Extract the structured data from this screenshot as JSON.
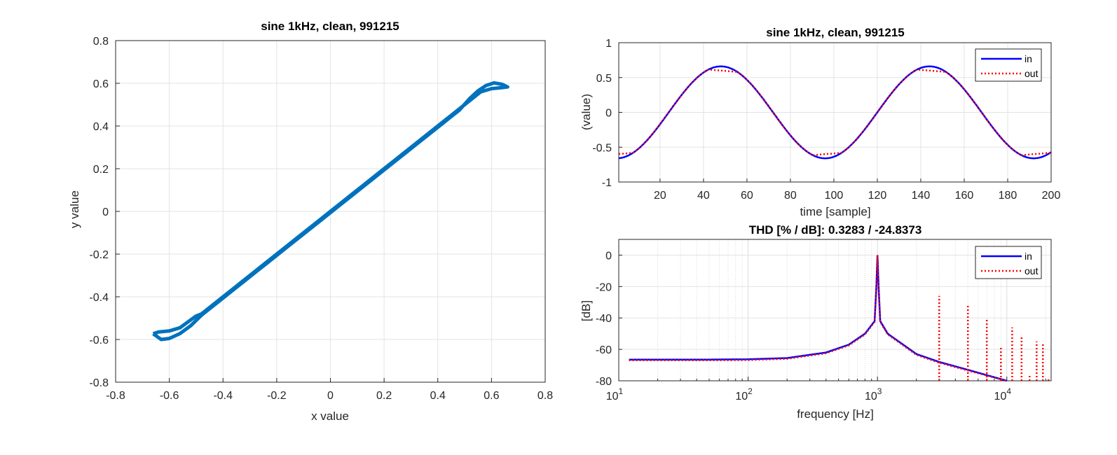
{
  "chart_data": [
    {
      "type": "scatter",
      "title": "sine 1kHz, clean, 991215",
      "xlabel": "x value",
      "ylabel": "y value",
      "xlim": [
        -0.8,
        0.8
      ],
      "ylim": [
        -0.8,
        0.8
      ],
      "xticks": [
        "-0.8",
        "-0.6",
        "-0.4",
        "-0.2",
        "0",
        "0.2",
        "0.4",
        "0.6",
        "0.8"
      ],
      "yticks": [
        "0.8",
        "0.6",
        "0.4",
        "0.2",
        "0",
        "-0.2",
        "-0.4",
        "-0.6",
        "-0.8"
      ],
      "grid": true,
      "color": "#0072BD",
      "description_points": {
        "x": [
          -0.66,
          -0.62,
          -0.55,
          -0.4,
          -0.2,
          0,
          0.2,
          0.4,
          0.55,
          0.62,
          0.66
        ],
        "y": [
          -0.57,
          -0.6,
          -0.55,
          -0.4,
          -0.2,
          0,
          0.2,
          0.4,
          0.55,
          0.6,
          0.58
        ]
      }
    },
    {
      "type": "line",
      "title": "sine 1kHz, clean, 991215",
      "xlabel": "time [sample]",
      "ylabel": "(value)",
      "xlim": [
        1,
        200
      ],
      "ylim": [
        -1,
        1
      ],
      "xticks": [
        "20",
        "40",
        "60",
        "80",
        "100",
        "120",
        "140",
        "160",
        "180",
        "200"
      ],
      "yticks": [
        "1",
        "0.5",
        "0",
        "-0.5",
        "-1"
      ],
      "grid": true,
      "legend_position": "top-right",
      "series": [
        {
          "name": "in",
          "color": "#0000FF",
          "style": "solid",
          "amplitude": 0.66,
          "period_samples": 96,
          "peak_sample": 48
        },
        {
          "name": "out",
          "color": "#FF0000",
          "style": "dotted",
          "amplitude": 0.66,
          "clip_level": 0.58,
          "period_samples": 96,
          "peak_sample": 48
        }
      ]
    },
    {
      "type": "line",
      "title": "THD [% / dB]:  0.3283 / -24.8373",
      "xlabel": "frequency [Hz]",
      "ylabel": "[dB]",
      "xscale": "log",
      "xlim": [
        10,
        22000
      ],
      "ylim": [
        -80,
        10
      ],
      "xticks": [
        "10",
        "10",
        "10",
        "10"
      ],
      "xtick_exponents": [
        "1",
        "2",
        "3",
        "4"
      ],
      "yticks": [
        "0",
        "-20",
        "-40",
        "-60",
        "-80"
      ],
      "grid": true,
      "legend_position": "top-right",
      "series": [
        {
          "name": "in",
          "color": "#0000FF",
          "style": "solid",
          "points": [
            [
              12,
              -66.5
            ],
            [
              50,
              -66.5
            ],
            [
              100,
              -66.3
            ],
            [
              200,
              -65.5
            ],
            [
              400,
              -62
            ],
            [
              600,
              -57
            ],
            [
              800,
              -50
            ],
            [
              950,
              -42
            ],
            [
              980,
              -20
            ],
            [
              1000,
              0
            ],
            [
              1020,
              -20
            ],
            [
              1050,
              -42
            ],
            [
              1200,
              -50
            ],
            [
              2000,
              -63
            ],
            [
              3000,
              -68
            ],
            [
              5000,
              -73
            ],
            [
              10000,
              -80
            ]
          ]
        },
        {
          "name": "out",
          "color": "#FF0000",
          "style": "dotted",
          "points": [
            [
              12,
              -67
            ],
            [
              50,
              -67
            ],
            [
              100,
              -66.8
            ],
            [
              200,
              -66
            ],
            [
              400,
              -62.5
            ],
            [
              600,
              -57.5
            ],
            [
              800,
              -50.5
            ],
            [
              950,
              -42.5
            ],
            [
              980,
              -20
            ],
            [
              1000,
              0
            ],
            [
              1020,
              -20
            ],
            [
              1050,
              -42.5
            ],
            [
              1200,
              -50.5
            ],
            [
              2000,
              -63.5
            ],
            [
              3000,
              -68.5
            ],
            [
              5000,
              -73.5
            ],
            [
              10000,
              -80
            ]
          ],
          "harmonics": [
            [
              3000,
              -26
            ],
            [
              5000,
              -32
            ],
            [
              7000,
              -41
            ],
            [
              9000,
              -59
            ],
            [
              11000,
              -46
            ],
            [
              13000,
              -51
            ],
            [
              15000,
              -76
            ],
            [
              17000,
              -55
            ],
            [
              19000,
              -56
            ],
            [
              21000,
              -79
            ]
          ]
        }
      ]
    }
  ]
}
